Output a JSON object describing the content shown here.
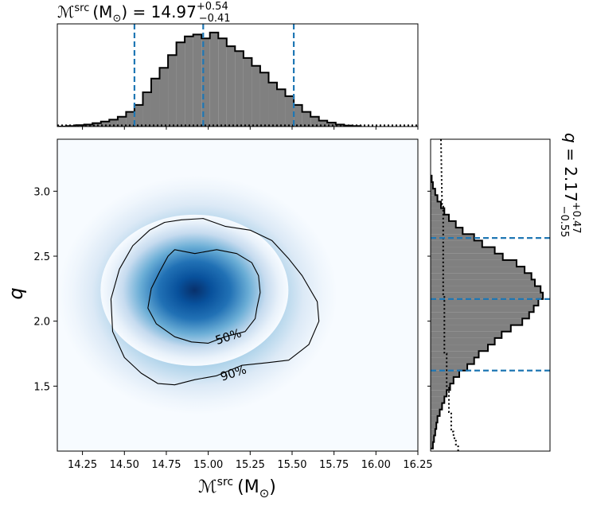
{
  "chart_data": [
    {
      "type": "histogram",
      "panel": "top-marginal",
      "title": {
        "symbol": "ℳ",
        "sup": "src",
        "unit": "(M",
        "unit_sub": "⊙",
        "unit_close": ")",
        "equals": " = 14.97",
        "plus": "+0.54",
        "minus": "−0.41"
      },
      "xlim": [
        14.1,
        16.25
      ],
      "bins": [
        [
          14.13,
          0.0
        ],
        [
          14.19,
          0.005
        ],
        [
          14.24,
          0.015
        ],
        [
          14.29,
          0.02
        ],
        [
          14.34,
          0.035
        ],
        [
          14.39,
          0.05
        ],
        [
          14.44,
          0.07
        ],
        [
          14.49,
          0.1
        ],
        [
          14.54,
          0.15
        ],
        [
          14.59,
          0.22
        ],
        [
          14.64,
          0.35
        ],
        [
          14.69,
          0.49
        ],
        [
          14.74,
          0.6
        ],
        [
          14.79,
          0.73
        ],
        [
          14.84,
          0.86
        ],
        [
          14.89,
          0.92
        ],
        [
          14.94,
          0.94
        ],
        [
          14.99,
          0.9
        ],
        [
          15.04,
          0.96
        ],
        [
          15.09,
          0.9
        ],
        [
          15.14,
          0.82
        ],
        [
          15.19,
          0.77
        ],
        [
          15.24,
          0.7
        ],
        [
          15.29,
          0.62
        ],
        [
          15.34,
          0.55
        ],
        [
          15.39,
          0.45
        ],
        [
          15.44,
          0.38
        ],
        [
          15.49,
          0.31
        ],
        [
          15.54,
          0.22
        ],
        [
          15.59,
          0.15
        ],
        [
          15.64,
          0.1
        ],
        [
          15.69,
          0.06
        ],
        [
          15.74,
          0.04
        ],
        [
          15.79,
          0.02
        ],
        [
          15.84,
          0.01
        ],
        [
          15.89,
          0.005
        ]
      ],
      "edges": [
        14.1,
        14.16,
        14.21,
        14.26,
        14.31,
        14.36,
        14.41,
        14.46,
        14.51,
        14.56,
        14.61,
        14.66,
        14.71,
        14.76,
        14.81,
        14.86,
        14.91,
        14.96,
        15.01,
        15.06,
        15.11,
        15.16,
        15.21,
        15.26,
        15.31,
        15.36,
        15.41,
        15.46,
        15.51,
        15.56,
        15.61,
        15.66,
        15.71,
        15.76,
        15.81,
        15.86,
        15.91
      ],
      "quantiles": [
        14.56,
        14.97,
        15.51
      ],
      "prior_dotted_level": 0.012
    },
    {
      "type": "heatmap",
      "panel": "joint",
      "xlabel": {
        "symbol": "ℳ",
        "sup": "src",
        "unit": "(M",
        "unit_sub": "⊙",
        "unit_close": ")"
      },
      "ylabel": "q",
      "xlim": [
        14.1,
        16.25
      ],
      "ylim": [
        1.0,
        3.4
      ],
      "xticks": [
        "14.25",
        "14.50",
        "14.75",
        "15.00",
        "15.25",
        "15.50",
        "15.75",
        "16.00",
        "16.25"
      ],
      "xtick_values": [
        14.25,
        14.5,
        14.75,
        15.0,
        15.25,
        15.5,
        15.75,
        16.0,
        16.25
      ],
      "yticks": [
        "1.5",
        "2.0",
        "2.5",
        "3.0"
      ],
      "ytick_values": [
        1.5,
        2.0,
        2.5,
        3.0
      ],
      "peak": {
        "x": 14.88,
        "y": 2.25
      },
      "contours": [
        {
          "label": "50%",
          "x": [
            14.8,
            14.92,
            15.05,
            15.17,
            15.26,
            15.3,
            15.31,
            15.29,
            15.28,
            15.22,
            15.1,
            15.0,
            14.9,
            14.8,
            14.69,
            14.64,
            14.66,
            14.71,
            14.76,
            14.8
          ],
          "y": [
            2.55,
            2.52,
            2.55,
            2.52,
            2.45,
            2.35,
            2.22,
            2.1,
            2.02,
            1.92,
            1.88,
            1.83,
            1.84,
            1.88,
            1.98,
            2.1,
            2.25,
            2.38,
            2.5,
            2.55
          ],
          "label_at": [
            15.12,
            1.88
          ]
        },
        {
          "label": "90%",
          "x": [
            14.84,
            14.97,
            15.1,
            15.25,
            15.38,
            15.48,
            15.56,
            15.65,
            15.66,
            15.6,
            15.48,
            15.35,
            15.2,
            15.05,
            14.92,
            14.8,
            14.7,
            14.6,
            14.5,
            14.43,
            14.42,
            14.47,
            14.55,
            14.65,
            14.74,
            14.84
          ],
          "y": [
            2.78,
            2.79,
            2.73,
            2.7,
            2.62,
            2.48,
            2.35,
            2.15,
            2.0,
            1.82,
            1.7,
            1.68,
            1.66,
            1.58,
            1.55,
            1.51,
            1.52,
            1.6,
            1.72,
            1.92,
            2.17,
            2.4,
            2.58,
            2.7,
            2.76,
            2.78
          ],
          "label_at": [
            15.15,
            1.6
          ]
        }
      ]
    },
    {
      "type": "histogram",
      "panel": "right-marginal",
      "orientation": "horizontal",
      "title": {
        "symbol": "q",
        "equals": " = 2.17",
        "plus": "+0.47",
        "minus": "−0.55"
      },
      "ylim": [
        1.0,
        3.4
      ],
      "edges": [
        1.02,
        1.07,
        1.12,
        1.17,
        1.22,
        1.27,
        1.32,
        1.37,
        1.42,
        1.47,
        1.52,
        1.57,
        1.62,
        1.67,
        1.72,
        1.77,
        1.82,
        1.87,
        1.92,
        1.97,
        2.02,
        2.07,
        2.12,
        2.17,
        2.22,
        2.27,
        2.32,
        2.37,
        2.42,
        2.47,
        2.52,
        2.57,
        2.62,
        2.67,
        2.72,
        2.77,
        2.82,
        2.87,
        2.92,
        2.97,
        3.02,
        3.07,
        3.12
      ],
      "values": [
        0.02,
        0.03,
        0.04,
        0.05,
        0.06,
        0.08,
        0.1,
        0.12,
        0.14,
        0.17,
        0.2,
        0.25,
        0.32,
        0.38,
        0.42,
        0.5,
        0.56,
        0.62,
        0.7,
        0.8,
        0.86,
        0.9,
        0.94,
        0.98,
        0.96,
        0.91,
        0.88,
        0.82,
        0.75,
        0.63,
        0.56,
        0.45,
        0.38,
        0.28,
        0.22,
        0.16,
        0.12,
        0.09,
        0.06,
        0.04,
        0.02,
        0.01
      ],
      "quantiles": [
        1.62,
        2.17,
        2.64
      ],
      "prior_dotted": [
        [
          1.0,
          0.24
        ],
        [
          1.05,
          0.24
        ],
        [
          1.05,
          0.22
        ],
        [
          1.1,
          0.22
        ],
        [
          1.1,
          0.2
        ],
        [
          1.15,
          0.2
        ],
        [
          1.15,
          0.18
        ],
        [
          1.3,
          0.18
        ],
        [
          1.3,
          0.16
        ],
        [
          1.5,
          0.16
        ],
        [
          1.5,
          0.14
        ],
        [
          1.75,
          0.14
        ],
        [
          1.75,
          0.12
        ],
        [
          2.2,
          0.12
        ],
        [
          2.2,
          0.11
        ],
        [
          2.9,
          0.11
        ],
        [
          2.9,
          0.1
        ],
        [
          3.4,
          0.09
        ]
      ]
    }
  ]
}
